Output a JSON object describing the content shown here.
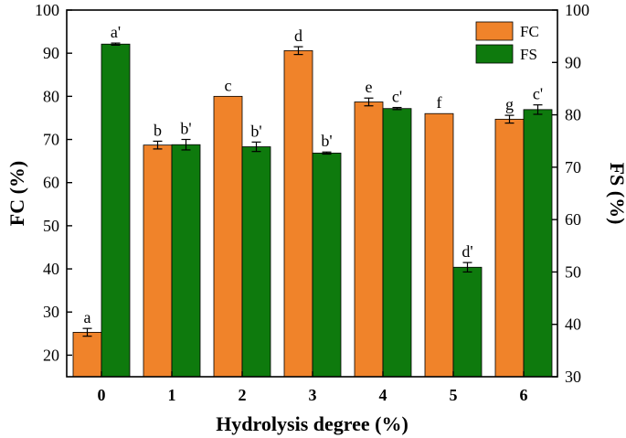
{
  "chart_data": {
    "type": "bar",
    "title": "",
    "xlabel": "Hydrolysis degree (%)",
    "ylabel_left": "FC (%)",
    "ylabel_right": "FS (%)",
    "categories": [
      "0",
      "1",
      "2",
      "3",
      "4",
      "5",
      "6"
    ],
    "ylim_left": [
      15,
      100
    ],
    "ylim_right": [
      30,
      100
    ],
    "yticks_left": [
      20,
      30,
      40,
      50,
      60,
      70,
      80,
      90,
      100
    ],
    "yticks_right": [
      30,
      40,
      50,
      60,
      70,
      80,
      90,
      100
    ],
    "legend_position": "top-right",
    "series": [
      {
        "name": "FC",
        "axis": "left",
        "color": "#F0832A",
        "values": [
          25.3,
          68.7,
          80.0,
          90.6,
          78.7,
          76.0,
          74.7
        ],
        "errors": [
          0.9,
          0.9,
          0,
          0.9,
          0.9,
          0,
          0.9
        ],
        "labels": [
          "a",
          "b",
          "c",
          "d",
          "e",
          "f",
          "g"
        ]
      },
      {
        "name": "FS",
        "axis": "right",
        "color": "#0E7A0D",
        "values": [
          93.5,
          74.3,
          73.9,
          72.7,
          81.2,
          50.9,
          81.0
        ],
        "errors": [
          0.2,
          1.0,
          0.9,
          0.2,
          0.2,
          0.9,
          0.9
        ],
        "labels": [
          "a'",
          "b'",
          "b'",
          "b'",
          "c'",
          "d'",
          "c'"
        ]
      }
    ]
  }
}
